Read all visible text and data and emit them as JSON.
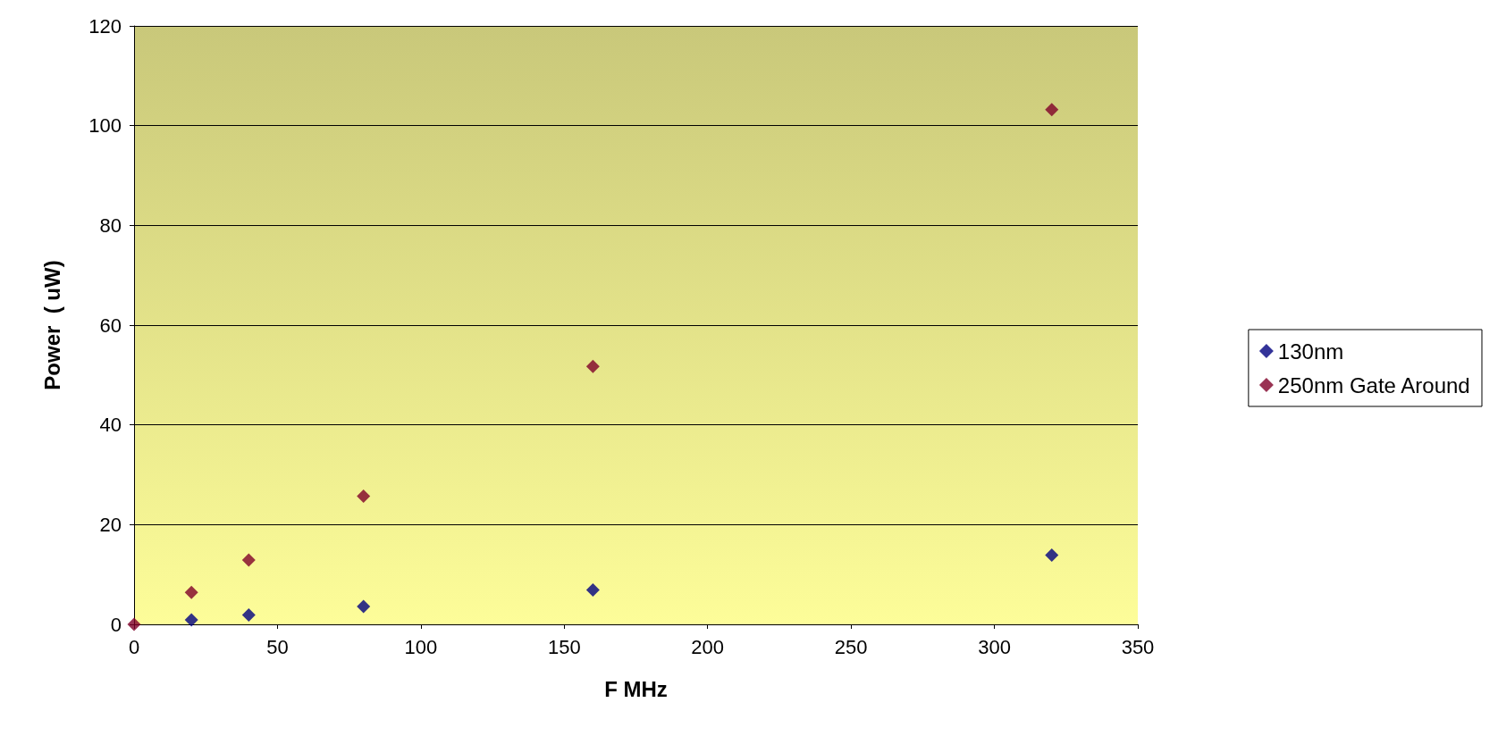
{
  "chart_data": {
    "type": "scatter",
    "xlabel": "F MHz",
    "ylabel": "Power  ( uW)",
    "marker": "diamond",
    "grid": "y",
    "legend": "right",
    "xlim": [
      0,
      350
    ],
    "xticks": [
      0,
      50,
      100,
      150,
      200,
      250,
      300,
      350
    ],
    "ylim": [
      0,
      120
    ],
    "yticks": [
      0,
      20,
      40,
      60,
      80,
      100,
      120
    ],
    "series": [
      {
        "name": "130nm",
        "color": "#000080",
        "x": [
          20,
          40,
          80,
          160,
          320
        ],
        "values": [
          0.9,
          1.9,
          3.6,
          6.9,
          13.9
        ]
      },
      {
        "name": "250nm Gate Around",
        "color": "#800028",
        "x": [
          0,
          20,
          40,
          80,
          160,
          320
        ],
        "values": [
          0,
          6.4,
          12.9,
          25.7,
          51.7,
          103.2
        ]
      }
    ]
  }
}
